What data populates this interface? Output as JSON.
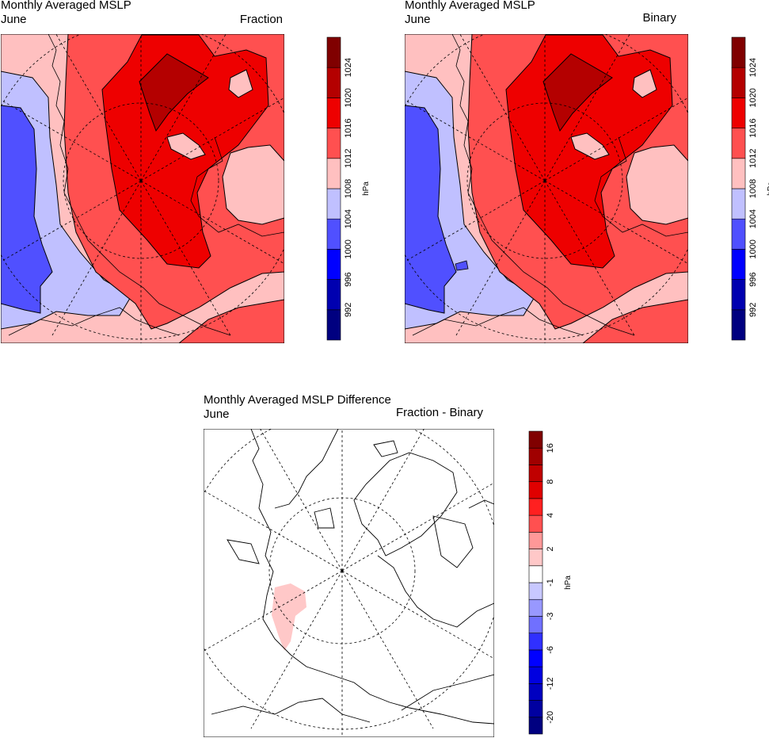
{
  "panels": [
    {
      "title": "Monthly Averaged MSLP",
      "subtitle": "June",
      "right_label": "Fraction"
    },
    {
      "title": "Monthly Averaged MSLP",
      "subtitle": "June",
      "right_label": "Binary"
    },
    {
      "title": "Monthly Averaged MSLP Difference",
      "subtitle": "June",
      "right_label": "Fraction - Binary"
    }
  ],
  "colorbars": {
    "mslp": {
      "units": "hPa",
      "levels": [
        "992",
        "996",
        "1000",
        "1004",
        "1008",
        "1012",
        "1016",
        "1020",
        "1024"
      ],
      "colors": [
        "#000080",
        "#0000b0",
        "#0000ff",
        "#5050ff",
        "#c0c0ff",
        "#ffc0c0",
        "#ff5050",
        "#ee0000",
        "#b40000",
        "#800000"
      ]
    },
    "diff": {
      "units": "hPa",
      "levels": [
        "-20",
        "-16",
        "-12",
        "-8",
        "-6",
        "-4",
        "-3",
        "-2",
        "-1",
        "1",
        "2",
        "3",
        "4",
        "6",
        "8",
        "12",
        "16"
      ],
      "labeled": [
        "-20",
        "-12",
        "-6",
        "-3",
        "-1",
        "2",
        "4",
        "8",
        "16"
      ],
      "colors": [
        "#000080",
        "#0000a0",
        "#0000c0",
        "#0000e0",
        "#0000ff",
        "#3030ff",
        "#7070ff",
        "#9898ff",
        "#c8c8ff",
        "#ffffff",
        "#ffc8c8",
        "#ff9898",
        "#ff5050",
        "#ff2020",
        "#e00000",
        "#c00000",
        "#a00000",
        "#800000"
      ]
    }
  }
}
